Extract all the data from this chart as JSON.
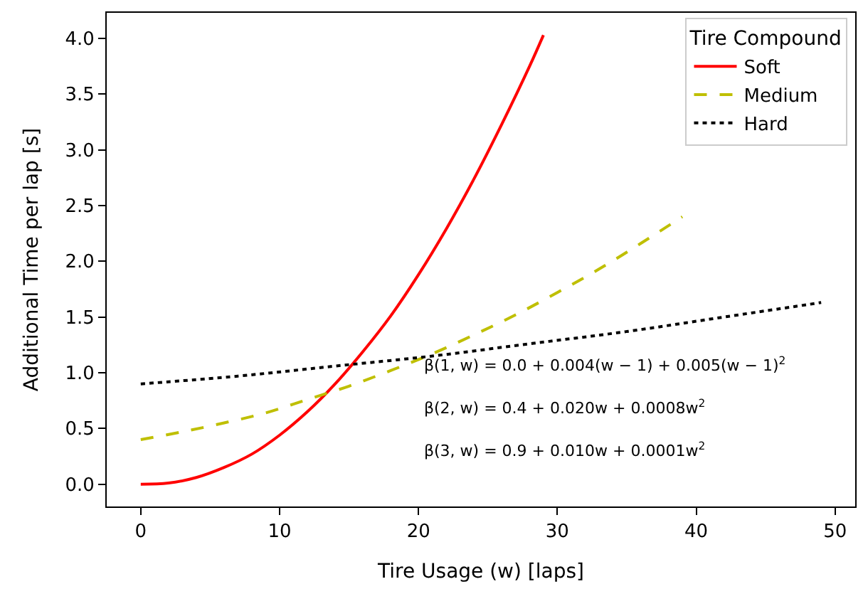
{
  "chart_data": {
    "type": "line",
    "xlabel": "Tire Usage (w) [laps]",
    "ylabel": "Additional Time per lap [s]",
    "legend_title": "Tire Compound",
    "legend": "top right",
    "xlim": [
      -2.45,
      51.45
    ],
    "xticks": [
      0,
      10,
      20,
      30,
      40,
      50
    ],
    "ylim": [
      -0.2,
      4.23
    ],
    "yticks": [
      {
        "value": 0,
        "label": "0.0"
      },
      {
        "value": 0.5,
        "label": "0.5"
      },
      {
        "value": 1,
        "label": "1.0"
      },
      {
        "value": 1.5,
        "label": "1.5"
      },
      {
        "value": 2,
        "label": "2.0"
      },
      {
        "value": 2.5,
        "label": "2.5"
      },
      {
        "value": 3,
        "label": "3.0"
      },
      {
        "value": 3.5,
        "label": "3.5"
      },
      {
        "value": 4,
        "label": "4.0"
      }
    ],
    "series": [
      {
        "name": "Soft",
        "color": "#ff0000",
        "line_style": "solid",
        "x": [
          0,
          2,
          4,
          6,
          8,
          10,
          12,
          14,
          16,
          18,
          20,
          22,
          24,
          26,
          28,
          29
        ],
        "values": [
          0.0,
          0.01,
          0.06,
          0.15,
          0.27,
          0.44,
          0.65,
          0.9,
          1.19,
          1.51,
          1.88,
          2.29,
          2.74,
          3.23,
          3.75,
          4.03
        ]
      },
      {
        "name": "Medium",
        "color": "#bfbf00",
        "line_style": "dashed",
        "x": [
          0,
          3,
          6,
          9,
          12,
          15,
          18,
          21,
          24,
          27,
          30,
          33,
          36,
          39
        ],
        "values": [
          0.4,
          0.47,
          0.55,
          0.64,
          0.76,
          0.88,
          1.02,
          1.17,
          1.34,
          1.52,
          1.72,
          1.93,
          2.16,
          2.4
        ]
      },
      {
        "name": "Hard",
        "color": "#000000",
        "line_style": "dotted",
        "x": [
          0,
          7,
          14,
          21,
          28,
          35,
          42,
          49
        ],
        "values": [
          0.9,
          0.97,
          1.06,
          1.15,
          1.26,
          1.37,
          1.5,
          1.63
        ]
      }
    ],
    "annotations": [
      "β(1, w) = 0.0 + 0.004(w − 1) + 0.005(w − 1)$^{2}$",
      "β(2, w) = 0.4 + 0.020w + 0.0008w$^{2}$",
      "β(3, w) = 0.9 + 0.010w + 0.0001w$^{2}$"
    ]
  }
}
